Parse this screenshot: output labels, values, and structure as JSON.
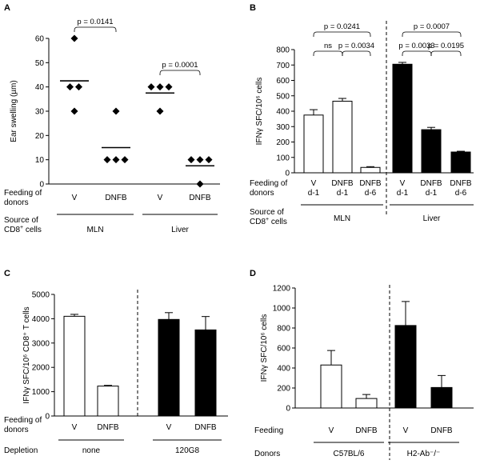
{
  "chart_data": [
    {
      "panel": "A",
      "type": "scatter",
      "ylabel": "Ear swelling (µm)",
      "ylim": [
        0,
        60
      ],
      "yticks": [
        0,
        10,
        20,
        30,
        40,
        50,
        60
      ],
      "row_labels": [
        "Feeding of donors",
        "Source of CD8⁺ cells"
      ],
      "categories": [
        "V",
        "DNFB",
        "V",
        "DNFB"
      ],
      "sources": [
        {
          "name": "MLN",
          "span": [
            0,
            1
          ]
        },
        {
          "name": "Liver",
          "span": [
            2,
            3
          ]
        }
      ],
      "points": [
        [
          60,
          40,
          40,
          30
        ],
        [
          30,
          10,
          10,
          10
        ],
        [
          40,
          40,
          40,
          30
        ],
        [
          10,
          10,
          10,
          0
        ]
      ],
      "means": [
        42.5,
        15,
        37.5,
        7.5
      ],
      "pvalues": [
        {
          "text": "p = 0.0141",
          "from": 0,
          "to": 1
        },
        {
          "text": "p = 0.0001",
          "from": 2,
          "to": 3
        }
      ]
    },
    {
      "panel": "B",
      "type": "bar",
      "ylabel": "IFNγ SFC/10⁶ cells",
      "ylim": [
        0,
        800
      ],
      "yticks": [
        0,
        100,
        200,
        300,
        400,
        500,
        600,
        700,
        800
      ],
      "row_labels": [
        "Feeding of donors",
        "Source of CD8⁺ cells"
      ],
      "categories": [
        {
          "top": "V",
          "bottom": "d-1"
        },
        {
          "top": "DNFB",
          "bottom": "d-1"
        },
        {
          "top": "DNFB",
          "bottom": "d-6"
        },
        {
          "top": "V",
          "bottom": "d-1"
        },
        {
          "top": "DNFB",
          "bottom": "d-1"
        },
        {
          "top": "DNFB",
          "bottom": "d-6"
        }
      ],
      "values": [
        375,
        465,
        35,
        705,
        280,
        135
      ],
      "errors": [
        35,
        18,
        5,
        12,
        15,
        5
      ],
      "fills": [
        "#ffffff",
        "#ffffff",
        "#ffffff",
        "#000000",
        "#000000",
        "#000000"
      ],
      "sources": [
        {
          "name": "MLN",
          "span": [
            0,
            2
          ]
        },
        {
          "name": "Liver",
          "span": [
            3,
            5
          ]
        }
      ],
      "pvalues": [
        {
          "text": "p = 0.0241",
          "from": 0,
          "to": 2,
          "level": 2
        },
        {
          "text": "ns",
          "from": 0,
          "to": 1,
          "level": 1
        },
        {
          "text": "p = 0.0034",
          "from": 1,
          "to": 2,
          "level": 1
        },
        {
          "text": "p = 0.0007",
          "from": 3,
          "to": 5,
          "level": 2
        },
        {
          "text": "p = 0.0033",
          "from": 3,
          "to": 4,
          "level": 1
        },
        {
          "text": "p = 0.0195",
          "from": 4,
          "to": 5,
          "level": 1
        }
      ]
    },
    {
      "panel": "C",
      "type": "bar",
      "ylabel": "IFNγ SFC/10⁶ CD8⁺ T cells",
      "ylim": [
        0,
        5000
      ],
      "yticks": [
        0,
        1000,
        2000,
        3000,
        4000,
        5000
      ],
      "row_labels": [
        "Feeding of donors",
        "Depletion"
      ],
      "categories": [
        "V",
        "DNFB",
        "V",
        "DNFB"
      ],
      "values": [
        4100,
        1230,
        3970,
        3540
      ],
      "errors": [
        80,
        30,
        280,
        550
      ],
      "fills": [
        "#ffffff",
        "#ffffff",
        "#000000",
        "#000000"
      ],
      "groups": [
        {
          "name": "none",
          "span": [
            0,
            1
          ]
        },
        {
          "name": "120G8",
          "span": [
            2,
            3
          ]
        }
      ]
    },
    {
      "panel": "D",
      "type": "bar",
      "ylabel": "IFNγ SFC/10⁶ cells",
      "ylim": [
        0,
        1200
      ],
      "yticks": [
        0,
        200,
        400,
        600,
        800,
        1000,
        1200
      ],
      "row_labels": [
        "Feeding",
        "Donors"
      ],
      "categories": [
        "V",
        "DNFB",
        "V",
        "DNFB"
      ],
      "values": [
        430,
        95,
        825,
        205
      ],
      "errors": [
        145,
        40,
        240,
        120
      ],
      "fills": [
        "#ffffff",
        "#ffffff",
        "#000000",
        "#000000"
      ],
      "groups": [
        {
          "name": "C57BL/6",
          "span": [
            0,
            1
          ]
        },
        {
          "name": "H2-Ab⁻/⁻",
          "span": [
            2,
            3
          ]
        }
      ]
    }
  ]
}
